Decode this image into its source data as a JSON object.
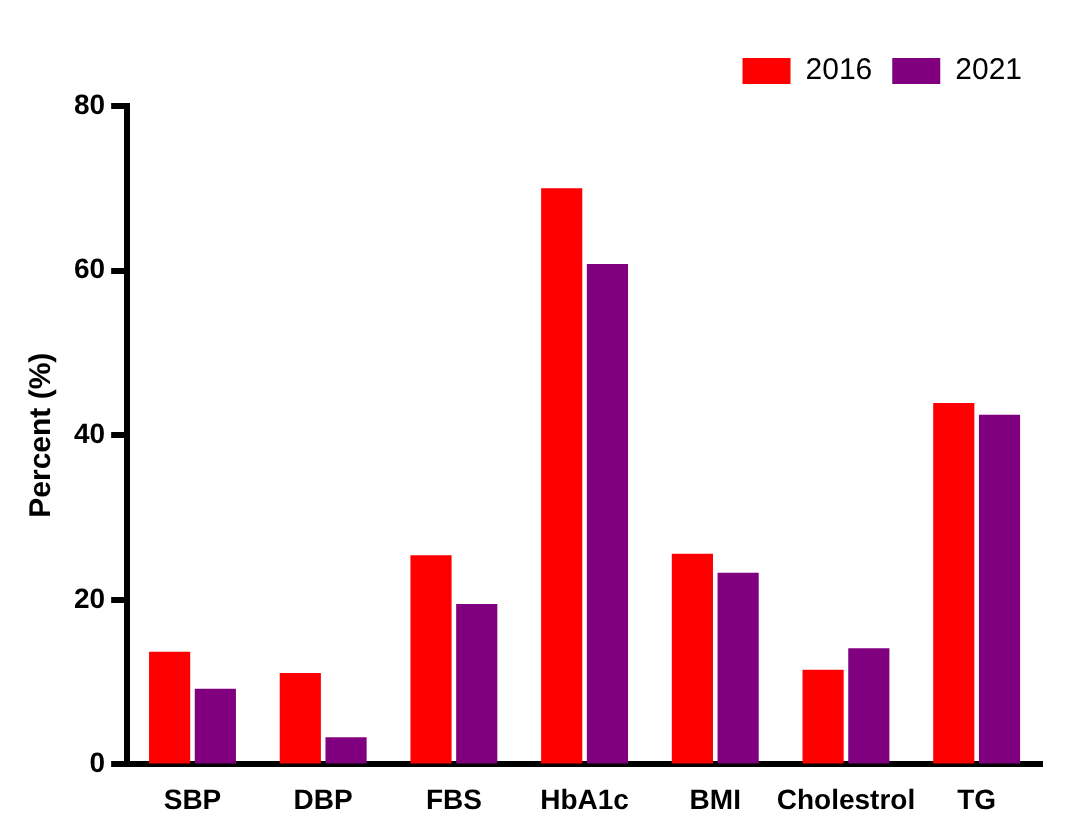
{
  "chart_data": {
    "type": "bar",
    "ylabel": "Percent (%)",
    "categories": [
      "SBP",
      "DBP",
      "FBS",
      "HbA1c",
      "BMI",
      "Cholestrol",
      "TG"
    ],
    "series": [
      {
        "name": "2016",
        "color": "#ff0000",
        "values": [
          13.7,
          11.1,
          25.4,
          70.0,
          25.6,
          11.5,
          43.9
        ]
      },
      {
        "name": "2021",
        "color": "#800080",
        "values": [
          9.2,
          3.3,
          19.5,
          60.8,
          23.3,
          14.1,
          42.5
        ]
      }
    ],
    "ylim": [
      0,
      80
    ],
    "yticks": [
      0,
      20,
      40,
      60,
      80
    ],
    "grid": false,
    "legend": "top right"
  }
}
